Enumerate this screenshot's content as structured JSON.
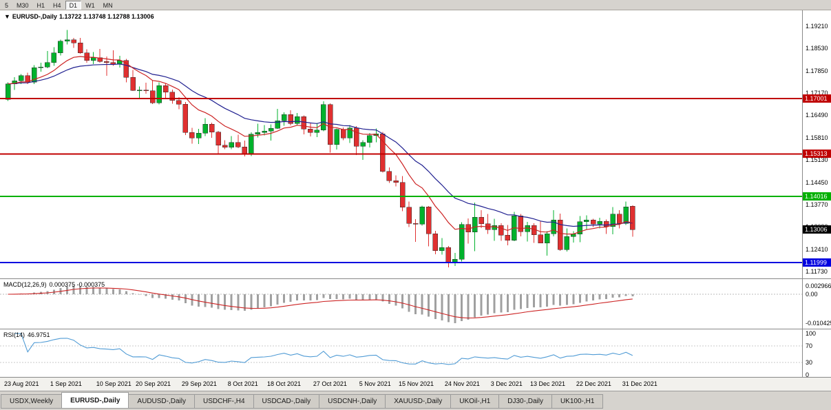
{
  "toolbar": {
    "timeframes": [
      {
        "label": "5",
        "active": false
      },
      {
        "label": "M30",
        "active": false
      },
      {
        "label": "H1",
        "active": false
      },
      {
        "label": "H4",
        "active": false
      },
      {
        "label": "D1",
        "active": true
      },
      {
        "label": "W1",
        "active": false
      },
      {
        "label": "MN",
        "active": false
      }
    ]
  },
  "chart": {
    "menu_icon": "▼",
    "header": {
      "symbol": "EURUSD-,Daily",
      "values": "1.13722 1.13748 1.12788 1.13006"
    },
    "y_axis_labels": [
      "1.19210",
      "1.18530",
      "1.17850",
      "1.17170",
      "1.16490",
      "1.15810",
      "1.15130",
      "1.14450",
      "1.13770",
      "1.13090",
      "1.12410",
      "1.11730"
    ]
  },
  "macd": {
    "label": "MACD(12,26,9)",
    "values": "0.000375 -0.000375",
    "axis_labels": [
      "0.002966",
      "0.00",
      "-0.010425"
    ],
    "max": 0.002966,
    "min": -0.010425,
    "histogram_color": "#a0a0a0",
    "signal_color": "#cc2222"
  },
  "rsi": {
    "label": "RSI(14)",
    "value": "46.9751",
    "axis_labels": [
      100,
      70,
      30,
      0
    ],
    "levels": [
      70,
      30
    ],
    "line_color": "#4f9bd5"
  },
  "tabs": [
    {
      "label": "USDX,Weekly",
      "active": false
    },
    {
      "label": "EURUSD-,Daily",
      "active": true
    },
    {
      "label": "AUDUSD-,Daily",
      "active": false
    },
    {
      "label": "USDCHF-,H4",
      "active": false
    },
    {
      "label": "USDCAD-,Daily",
      "active": false
    },
    {
      "label": "USDCNH-,Daily",
      "active": false
    },
    {
      "label": "XAUUSD-,Daily",
      "active": false
    },
    {
      "label": "UKOil-,H1",
      "active": false
    },
    {
      "label": "DJ30-,Daily",
      "active": false
    },
    {
      "label": "UK100-,H1",
      "active": false
    }
  ],
  "chart_data": {
    "type": "candlestick",
    "symbol": "EURUSD-",
    "timeframe": "Daily",
    "title": "EURUSD-,Daily 1.13722 1.13748 1.12788 1.13006",
    "ylim": [
      1.1173,
      1.1921
    ],
    "bull_color": "#00b22c",
    "bear_color": "#e03030",
    "ma_fast_color": "#cc2222",
    "ma_slow_color": "#202090",
    "hlines": [
      {
        "price": 1.17001,
        "label": "1.17001",
        "color": "#c00000",
        "width": 2
      },
      {
        "price": 1.15313,
        "label": "1.15313",
        "color": "#c00000",
        "width": 2
      },
      {
        "price": 1.14016,
        "label": "1.14016",
        "color": "#00b000",
        "width": 2
      },
      {
        "price": 1.11999,
        "label": "1.11999",
        "color": "#0000e0",
        "width": 2
      }
    ],
    "current_price": {
      "price": 1.13006,
      "label": "1.13006",
      "bg": "#000000"
    },
    "x_ticks": [
      {
        "i": 0,
        "label": "23 Aug 2021"
      },
      {
        "i": 7,
        "label": "1 Sep 2021"
      },
      {
        "i": 14,
        "label": "10 Sep 2021"
      },
      {
        "i": 20,
        "label": "20 Sep 2021"
      },
      {
        "i": 27,
        "label": "29 Sep 2021"
      },
      {
        "i": 34,
        "label": "8 Oct 2021"
      },
      {
        "i": 40,
        "label": "18 Oct 2021"
      },
      {
        "i": 47,
        "label": "27 Oct 2021"
      },
      {
        "i": 54,
        "label": "5 Nov 2021"
      },
      {
        "i": 60,
        "label": "15 Nov 2021"
      },
      {
        "i": 67,
        "label": "24 Nov 2021"
      },
      {
        "i": 74,
        "label": "3 Dec 2021"
      },
      {
        "i": 80,
        "label": "13 Dec 2021"
      },
      {
        "i": 87,
        "label": "22 Dec 2021"
      },
      {
        "i": 94,
        "label": "31 Dec 2021"
      }
    ],
    "candles": [
      [
        1.1698,
        1.175,
        1.1693,
        1.1745
      ],
      [
        1.1745,
        1.1765,
        1.1727,
        1.1755
      ],
      [
        1.1755,
        1.1775,
        1.1745,
        1.177
      ],
      [
        1.177,
        1.1779,
        1.1745,
        1.175
      ],
      [
        1.175,
        1.1802,
        1.1744,
        1.1795
      ],
      [
        1.1795,
        1.181,
        1.1782,
        1.1797
      ],
      [
        1.1797,
        1.1845,
        1.1793,
        1.181
      ],
      [
        1.181,
        1.1857,
        1.18,
        1.184
      ],
      [
        1.184,
        1.188,
        1.1832,
        1.1875
      ],
      [
        1.1875,
        1.1909,
        1.1865,
        1.188
      ],
      [
        1.188,
        1.1885,
        1.1855,
        1.187
      ],
      [
        1.187,
        1.1885,
        1.1837,
        1.184
      ],
      [
        1.184,
        1.1851,
        1.181,
        1.1817
      ],
      [
        1.1817,
        1.1842,
        1.1805,
        1.1825
      ],
      [
        1.1825,
        1.1852,
        1.181,
        1.1813
      ],
      [
        1.1813,
        1.1829,
        1.177,
        1.181
      ],
      [
        1.181,
        1.1847,
        1.18,
        1.1805
      ],
      [
        1.1805,
        1.1831,
        1.1795,
        1.1817
      ],
      [
        1.1817,
        1.1821,
        1.175,
        1.1765
      ],
      [
        1.1765,
        1.1788,
        1.1724,
        1.1725
      ],
      [
        1.1725,
        1.1737,
        1.17,
        1.1726
      ],
      [
        1.1726,
        1.1749,
        1.1715,
        1.1724
      ],
      [
        1.1724,
        1.1756,
        1.1684,
        1.1687
      ],
      [
        1.1687,
        1.175,
        1.1683,
        1.174
      ],
      [
        1.174,
        1.1748,
        1.1701,
        1.172
      ],
      [
        1.172,
        1.1728,
        1.1685,
        1.1695
      ],
      [
        1.1695,
        1.1705,
        1.1668,
        1.1683
      ],
      [
        1.1683,
        1.169,
        1.1589,
        1.1597
      ],
      [
        1.1597,
        1.1611,
        1.1563,
        1.158
      ],
      [
        1.158,
        1.1608,
        1.1562,
        1.1595
      ],
      [
        1.1595,
        1.164,
        1.1586,
        1.1622
      ],
      [
        1.1622,
        1.1627,
        1.1581,
        1.1598
      ],
      [
        1.1598,
        1.1602,
        1.1529,
        1.1558
      ],
      [
        1.1558,
        1.1573,
        1.1546,
        1.1552
      ],
      [
        1.1552,
        1.1586,
        1.1546,
        1.1567
      ],
      [
        1.1567,
        1.159,
        1.1549,
        1.1553
      ],
      [
        1.1553,
        1.1572,
        1.1524,
        1.153
      ],
      [
        1.153,
        1.1597,
        1.1525,
        1.1592
      ],
      [
        1.1592,
        1.1624,
        1.1582,
        1.1597
      ],
      [
        1.1597,
        1.1619,
        1.1588,
        1.1601
      ],
      [
        1.1601,
        1.1622,
        1.1572,
        1.161
      ],
      [
        1.161,
        1.1669,
        1.1608,
        1.1633
      ],
      [
        1.1633,
        1.1658,
        1.1617,
        1.1652
      ],
      [
        1.1652,
        1.1665,
        1.1618,
        1.1624
      ],
      [
        1.1624,
        1.1656,
        1.162,
        1.1645
      ],
      [
        1.1645,
        1.1649,
        1.1591,
        1.1608
      ],
      [
        1.1608,
        1.1627,
        1.1585,
        1.1597
      ],
      [
        1.1597,
        1.1626,
        1.1583,
        1.1604
      ],
      [
        1.1604,
        1.1692,
        1.1601,
        1.1682
      ],
      [
        1.1682,
        1.1686,
        1.1535,
        1.156
      ],
      [
        1.156,
        1.1609,
        1.1545,
        1.1606
      ],
      [
        1.1606,
        1.1612,
        1.1573,
        1.158
      ],
      [
        1.158,
        1.162,
        1.1565,
        1.1611
      ],
      [
        1.1611,
        1.1616,
        1.1528,
        1.1555
      ],
      [
        1.1555,
        1.1573,
        1.1513,
        1.1567
      ],
      [
        1.1567,
        1.1595,
        1.1551,
        1.1588
      ],
      [
        1.1588,
        1.1609,
        1.1567,
        1.1593
      ],
      [
        1.1593,
        1.1598,
        1.1475,
        1.1478
      ],
      [
        1.1478,
        1.149,
        1.1443,
        1.145
      ],
      [
        1.145,
        1.1466,
        1.1432,
        1.1445
      ],
      [
        1.1445,
        1.1464,
        1.1357,
        1.1369
      ],
      [
        1.1369,
        1.1386,
        1.1309,
        1.132
      ],
      [
        1.132,
        1.1333,
        1.1263,
        1.1317
      ],
      [
        1.1317,
        1.1374,
        1.1313,
        1.137
      ],
      [
        1.137,
        1.1373,
        1.125,
        1.1288
      ],
      [
        1.1288,
        1.1297,
        1.1226,
        1.1237
      ],
      [
        1.1237,
        1.1275,
        1.1225,
        1.1246
      ],
      [
        1.1246,
        1.1251,
        1.1186,
        1.1199
      ],
      [
        1.1199,
        1.123,
        1.119,
        1.121
      ],
      [
        1.121,
        1.1323,
        1.1203,
        1.1317
      ],
      [
        1.1317,
        1.1335,
        1.1258,
        1.1293
      ],
      [
        1.1293,
        1.1383,
        1.1235,
        1.1339
      ],
      [
        1.1339,
        1.136,
        1.1305,
        1.1319
      ],
      [
        1.1319,
        1.1348,
        1.1288,
        1.1301
      ],
      [
        1.1301,
        1.1334,
        1.1266,
        1.1313
      ],
      [
        1.1313,
        1.132,
        1.1267,
        1.1284
      ],
      [
        1.1284,
        1.1315,
        1.1253,
        1.1268
      ],
      [
        1.1268,
        1.1355,
        1.1265,
        1.1343
      ],
      [
        1.1343,
        1.1348,
        1.128,
        1.1294
      ],
      [
        1.1294,
        1.1324,
        1.1264,
        1.1313
      ],
      [
        1.1313,
        1.132,
        1.126,
        1.1285
      ],
      [
        1.1285,
        1.1325,
        1.1259,
        1.126
      ],
      [
        1.126,
        1.1296,
        1.1221,
        1.1288
      ],
      [
        1.1288,
        1.136,
        1.128,
        1.133
      ],
      [
        1.133,
        1.1349,
        1.1236,
        1.124
      ],
      [
        1.124,
        1.1304,
        1.1234,
        1.128
      ],
      [
        1.128,
        1.1296,
        1.1261,
        1.1287
      ],
      [
        1.1287,
        1.1342,
        1.1262,
        1.1325
      ],
      [
        1.1325,
        1.1344,
        1.1302,
        1.133
      ],
      [
        1.133,
        1.1334,
        1.1308,
        1.1318
      ],
      [
        1.1318,
        1.1337,
        1.1304,
        1.1326
      ],
      [
        1.1326,
        1.1332,
        1.1287,
        1.131
      ],
      [
        1.131,
        1.1369,
        1.1286,
        1.1348
      ],
      [
        1.1348,
        1.136,
        1.1304,
        1.132
      ],
      [
        1.132,
        1.1386,
        1.1315,
        1.137
      ],
      [
        1.13722,
        1.13748,
        1.12788,
        1.13006
      ]
    ]
  }
}
